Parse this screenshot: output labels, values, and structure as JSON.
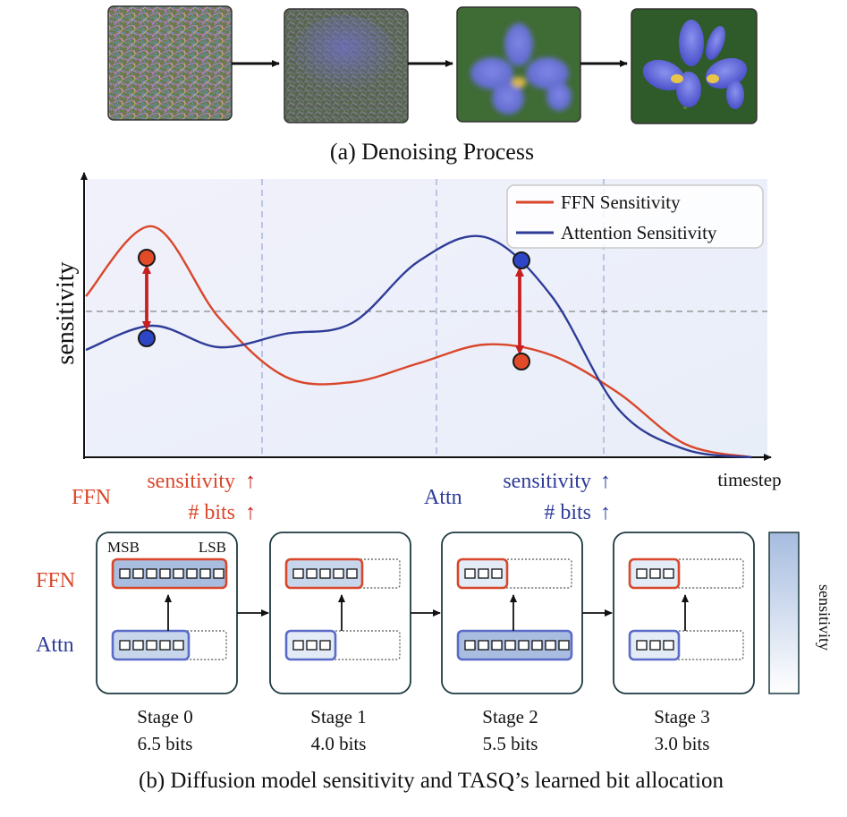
{
  "caption_a": "(a)  Denoising Process",
  "caption_b": "(b) Diffusion model sensitivity and TASQ’s learned bit allocation",
  "chart": {
    "ylabel": "sensitivity",
    "xlabel": "timestep",
    "legend": [
      "FFN Sensitivity",
      "Attention Sensitivity"
    ],
    "grid": "dashed vertical stage boundaries, dashed horizontal reference line",
    "legend_position": "top-right"
  },
  "chart_data": {
    "type": "line",
    "x": [
      0,
      0.1,
      0.2,
      0.3,
      0.4,
      0.5,
      0.6,
      0.7,
      0.8,
      0.9,
      1.0
    ],
    "series": [
      {
        "name": "FFN Sensitivity",
        "values": [
          0.6,
          0.86,
          0.52,
          0.3,
          0.28,
          0.35,
          0.42,
          0.38,
          0.24,
          0.05,
          0.0
        ]
      },
      {
        "name": "Attention Sensitivity",
        "values": [
          0.4,
          0.49,
          0.41,
          0.46,
          0.5,
          0.73,
          0.82,
          0.6,
          0.18,
          0.03,
          0.0
        ]
      }
    ]
  },
  "annotations": {
    "ffn_label": "FFN",
    "ffn_sens": "sensitivity",
    "ffn_bits": "# bits",
    "attn_label": "Attn",
    "attn_sens": "sensitivity",
    "attn_bits": "# bits",
    "up_arrow": "↑"
  },
  "rows": {
    "ffn": "FFN",
    "attn": "Attn"
  },
  "msb": "MSB",
  "lsb": "LSB",
  "colorbar_label": "sensitivity",
  "stages": [
    {
      "name": "Stage 0",
      "bits": "6.5 bits",
      "ffn_cells": 8,
      "attn_cells": 5
    },
    {
      "name": "Stage 1",
      "bits": "4.0 bits",
      "ffn_cells": 5,
      "attn_cells": 3
    },
    {
      "name": "Stage 2",
      "bits": "5.5 bits",
      "ffn_cells": 3,
      "attn_cells": 8
    },
    {
      "name": "Stage 3",
      "bits": "3.0 bits",
      "ffn_cells": 3,
      "attn_cells": 3
    }
  ],
  "colors": {
    "ffn": "#d9472b",
    "attn": "#2e3c98",
    "box_border": "#1d3a40",
    "reg_fill": "#c8d6ec",
    "reg_fill_dark": "#a9bde0"
  }
}
